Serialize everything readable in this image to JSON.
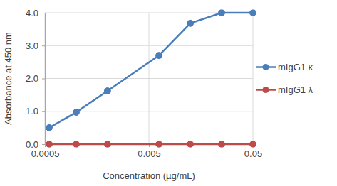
{
  "chart_data": {
    "type": "line",
    "x_label": "Concentration (µg/mL)",
    "y_label": "Absorbance at 450 nm",
    "x": [
      0.00055,
      0.001,
      0.002,
      0.00625,
      0.0125,
      0.025,
      0.05
    ],
    "series": [
      {
        "name": "mIgG1 κ",
        "color": "#4a7ebb",
        "marker": "circle",
        "line_style": "solid",
        "values": [
          0.5,
          0.97,
          1.62,
          2.7,
          3.68,
          4.0,
          4.0
        ]
      },
      {
        "name": "mIgG1 λ",
        "color": "#be4b48",
        "marker": "circle",
        "line_style": "solid",
        "values": [
          0,
          0,
          0,
          0,
          0,
          0,
          0
        ]
      }
    ],
    "log": "x",
    "xlim": [
      0.0005,
      0.05
    ],
    "xticks": [
      0.0005,
      0.005,
      0.05
    ],
    "ylim": [
      0,
      4
    ],
    "yticks": [
      {
        "value": 0,
        "label": "0.0"
      },
      {
        "value": 1,
        "label": "1.0"
      },
      {
        "value": 2,
        "label": "2.0"
      },
      {
        "value": 3,
        "label": "3.0"
      },
      {
        "value": 4,
        "label": "4.0"
      }
    ],
    "grid": true,
    "legend": "right"
  }
}
